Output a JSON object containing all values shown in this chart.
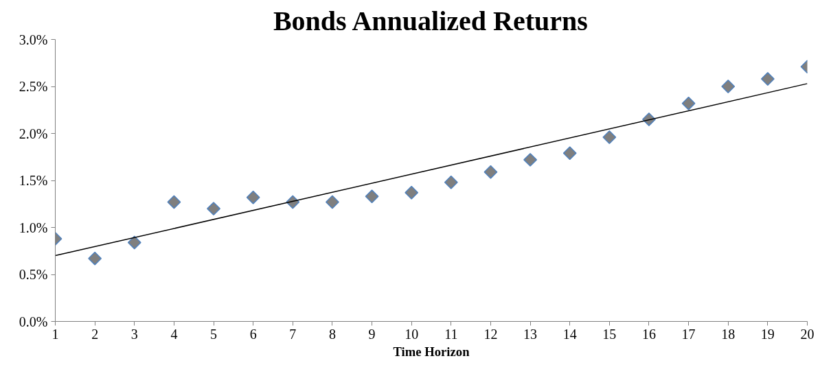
{
  "chart_data": {
    "type": "scatter",
    "title": "Bonds Annualized Returns",
    "xlabel": "Time Horizon",
    "x": [
      1,
      2,
      3,
      4,
      5,
      6,
      7,
      8,
      9,
      10,
      11,
      12,
      13,
      14,
      15,
      16,
      17,
      18,
      19,
      20
    ],
    "series": [
      {
        "color": "#7f7f7f",
        "marker": "diamond",
        "values": [
          0.88,
          0.67,
          0.84,
          1.27,
          1.2,
          1.32,
          1.27,
          1.27,
          1.33,
          1.37,
          1.48,
          1.59,
          1.72,
          1.79,
          1.96,
          2.15,
          2.32,
          2.5,
          2.58,
          2.71
        ]
      },
      {
        "type": "line",
        "color": "#000000",
        "x": [
          1,
          20
        ],
        "values": [
          0.7,
          2.53
        ]
      }
    ],
    "xlim": [
      1,
      20
    ],
    "xticks": [
      1,
      2,
      3,
      4,
      5,
      6,
      7,
      8,
      9,
      10,
      11,
      12,
      13,
      14,
      15,
      16,
      17,
      18,
      19,
      20
    ],
    "ylim": [
      0,
      3
    ],
    "yticks": [
      {
        "value": 0,
        "label": "0.0%"
      },
      {
        "value": 0.5,
        "label": "0.5%"
      },
      {
        "value": 1,
        "label": "1.0%"
      },
      {
        "value": 1.5,
        "label": "1.5%"
      },
      {
        "value": 2,
        "label": "2.0%"
      },
      {
        "value": 2.5,
        "label": "2.5%"
      },
      {
        "value": 3,
        "label": "3.0%"
      }
    ],
    "grid": false
  }
}
